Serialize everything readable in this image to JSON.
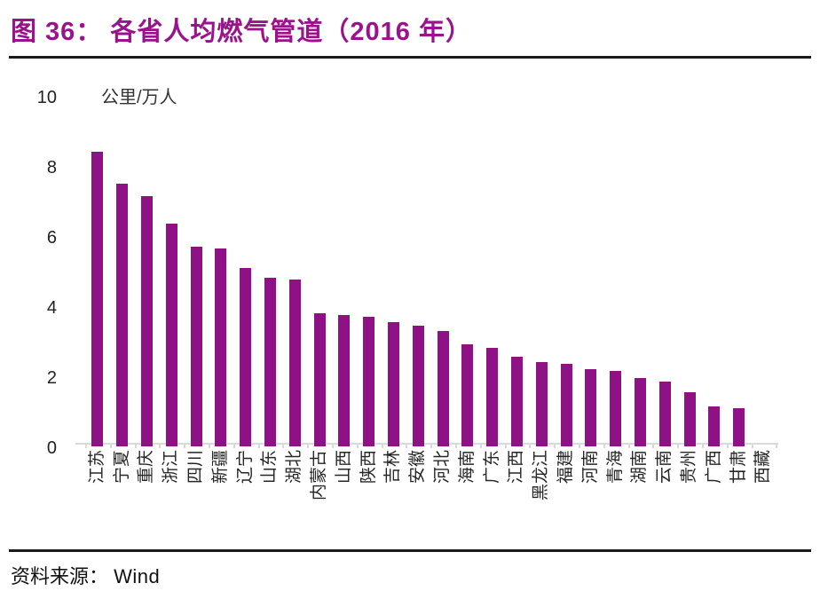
{
  "figure": {
    "title": "图 36：  各省人均燃气管道（2016 年）",
    "source_label": "资料来源：",
    "source_value": "Wind"
  },
  "chart_data": {
    "type": "bar",
    "title": "各省人均燃气管道（2016 年）",
    "unit_label": "公里/万人",
    "xlabel": "",
    "ylabel": "公里/万人",
    "ylim": [
      0,
      10
    ],
    "yticks": [
      0,
      2,
      4,
      6,
      8,
      10
    ],
    "grid": false,
    "legend": "none",
    "bar_color": "#8e1285",
    "categories": [
      "江苏",
      "宁夏",
      "重庆",
      "浙江",
      "四川",
      "新疆",
      "辽宁",
      "山东",
      "湖北",
      "内蒙古",
      "山西",
      "陕西",
      "吉林",
      "安徽",
      "河北",
      "海南",
      "广东",
      "江西",
      "黑龙江",
      "福建",
      "河南",
      "青海",
      "湖南",
      "云南",
      "贵州",
      "广西",
      "甘肃",
      "西藏"
    ],
    "values": [
      8.4,
      7.5,
      7.15,
      6.35,
      5.7,
      5.65,
      5.1,
      4.8,
      4.75,
      3.8,
      3.75,
      3.7,
      3.55,
      3.45,
      3.3,
      2.9,
      2.8,
      2.55,
      2.4,
      2.35,
      2.2,
      2.15,
      1.95,
      1.85,
      1.55,
      1.15,
      1.1,
      0
    ]
  },
  "colors": {
    "title": "#9b138c",
    "bar": "#8e1285",
    "axis": "#d9d9d9",
    "rule": "#1a1a1a",
    "text": "#262626"
  }
}
